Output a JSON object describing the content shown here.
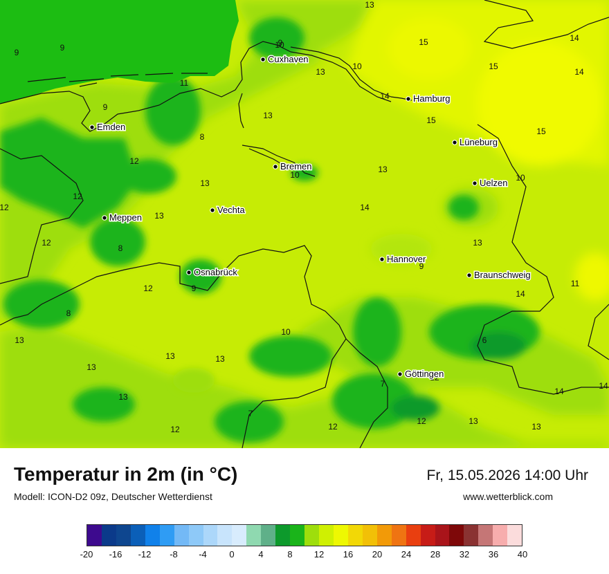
{
  "title": "Temperatur in 2m (in °C)",
  "model": "Modell: ICON-D2 09z, Deutscher Wetterdienst",
  "datetime": "Fr, 15.05.2026 14:00 Uhr",
  "website": "www.wetterblick.com",
  "cities": [
    {
      "name": "Cuxhaven"
    },
    {
      "name": "Hamburg"
    },
    {
      "name": "Emden"
    },
    {
      "name": "Lüneburg"
    },
    {
      "name": "Bremen"
    },
    {
      "name": "Uelzen"
    },
    {
      "name": "Vechta"
    },
    {
      "name": "Meppen"
    },
    {
      "name": "Hannover"
    },
    {
      "name": "Osnabrück"
    },
    {
      "name": "Braunschweig"
    },
    {
      "name": "Göttingen"
    }
  ],
  "values": [
    "13",
    "9",
    "9",
    "15",
    "10",
    "15",
    "14",
    "9",
    "13",
    "10",
    "11",
    "9",
    "14",
    "13",
    "15",
    "15",
    "8",
    "12",
    "13",
    "10",
    "14",
    "13",
    "12",
    "10",
    "14",
    "12",
    "13",
    "13",
    "12",
    "9",
    "8",
    "12",
    "9",
    "11",
    "14",
    "10",
    "8",
    "6",
    "13",
    "13",
    "13",
    "12",
    "7",
    "14",
    "13",
    "13",
    "12",
    "14",
    "7",
    "12",
    "12",
    "13",
    "13"
  ],
  "scale": {
    "ticks": [
      "-20",
      "-16",
      "-12",
      "-8",
      "-4",
      "0",
      "4",
      "8",
      "12",
      "16",
      "20",
      "24",
      "28",
      "32",
      "36",
      "40"
    ],
    "colors": [
      "#3d0a8e",
      "#0b3a8a",
      "#0e468f",
      "#0b5fb8",
      "#1081ea",
      "#2f9cf4",
      "#73b9f6",
      "#8ec9f8",
      "#acd7fa",
      "#c8e4fc",
      "#d8ecfd",
      "#8fd9b0",
      "#5fb089",
      "#0d9a2c",
      "#1ab41a",
      "#9ede0c",
      "#cff002",
      "#eef802",
      "#f2d806",
      "#f2c007",
      "#f29a08",
      "#ef7412",
      "#e93f10",
      "#c71c17",
      "#a9141a",
      "#7e0809",
      "#8a3232",
      "#c57676",
      "#f7adad",
      "#fbdcdc"
    ]
  }
}
